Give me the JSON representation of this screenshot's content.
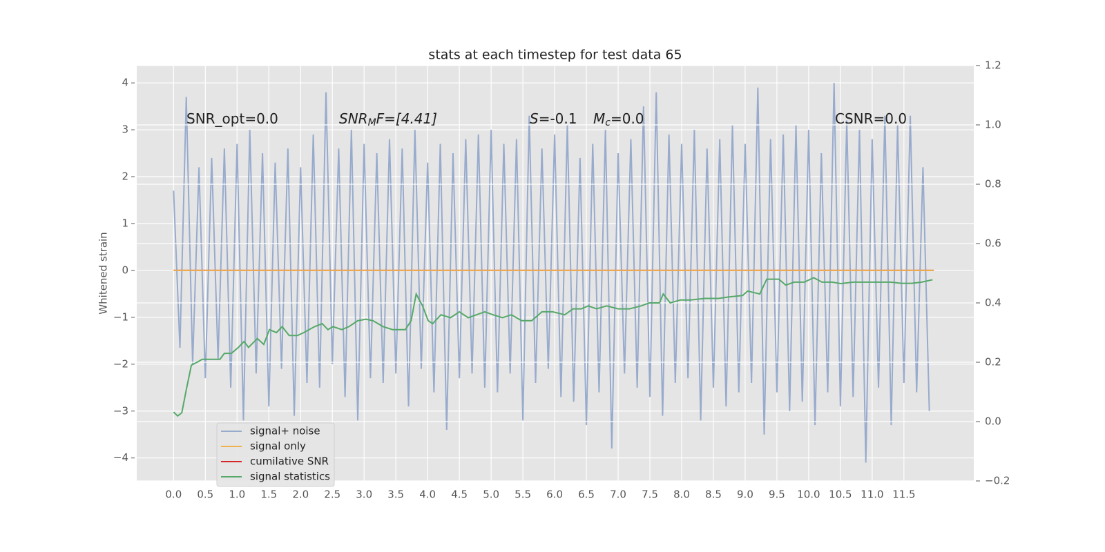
{
  "chart_data": {
    "type": "line",
    "title": "stats at each timestep for test data 65",
    "ylabel": "Whitened strain",
    "xlim": [
      -0.58,
      12.6
    ],
    "ylim": [
      -4.49,
      4.37
    ],
    "y2lim": [
      -0.2,
      1.2
    ],
    "xticks": [
      {
        "value": 0,
        "label": "0.0"
      },
      {
        "value": 0.5,
        "label": "0.5"
      },
      {
        "value": 1,
        "label": "1.0"
      },
      {
        "value": 1.5,
        "label": "1.5"
      },
      {
        "value": 2,
        "label": "2.0"
      },
      {
        "value": 2.5,
        "label": "2.5"
      },
      {
        "value": 3,
        "label": "3.0"
      },
      {
        "value": 3.5,
        "label": "3.5"
      },
      {
        "value": 4,
        "label": "4.0"
      },
      {
        "value": 4.5,
        "label": "4.5"
      },
      {
        "value": 5,
        "label": "5.0"
      },
      {
        "value": 5.5,
        "label": "5.5"
      },
      {
        "value": 6,
        "label": "6.0"
      },
      {
        "value": 6.5,
        "label": "6.5"
      },
      {
        "value": 7,
        "label": "7.0"
      },
      {
        "value": 7.5,
        "label": "7.5"
      },
      {
        "value": 8,
        "label": "8.0"
      },
      {
        "value": 8.5,
        "label": "8.5"
      },
      {
        "value": 9,
        "label": "9.0"
      },
      {
        "value": 9.5,
        "label": "9.5"
      },
      {
        "value": 10,
        "label": "10.0"
      },
      {
        "value": 10.5,
        "label": "10.5"
      },
      {
        "value": 11,
        "label": "11.0"
      },
      {
        "value": 11.5,
        "label": "11.5"
      }
    ],
    "yticks": [
      {
        "value": -4,
        "label": "−4"
      },
      {
        "value": -3,
        "label": "−3"
      },
      {
        "value": -2,
        "label": "−2"
      },
      {
        "value": -1,
        "label": "−1"
      },
      0,
      1,
      2,
      3,
      4
    ],
    "y2ticks": [
      {
        "value": -0.2,
        "label": "−0.2"
      },
      {
        "value": 0,
        "label": "0.0"
      },
      0.2,
      0.4,
      0.6,
      0.8,
      {
        "value": 1,
        "label": "1.0"
      },
      1.2
    ],
    "grid": true,
    "legend": "lower left",
    "annotations": [
      [
        "SNR_opt=0.0"
      ],
      [
        "SNR",
        "M",
        "F=[4.41]"
      ],
      [
        "S",
        "=-0.1"
      ],
      [
        "M",
        "c",
        "=0.0"
      ],
      [
        "CSNR=0.0"
      ]
    ],
    "series": [
      {
        "name": "signal+ noise",
        "color": "#98abcd",
        "x": [
          0,
          0.1,
          0.2,
          0.3,
          0.4,
          0.5,
          0.6,
          0.7,
          0.8,
          0.9,
          1,
          1.1,
          1.2,
          1.3,
          1.4,
          1.5,
          1.6,
          1.7,
          1.8,
          1.9,
          2,
          2.1,
          2.2,
          2.3,
          2.4,
          2.5,
          2.6,
          2.7,
          2.8,
          2.9,
          3,
          3.1,
          3.2,
          3.3,
          3.4,
          3.5,
          3.6,
          3.7,
          3.8,
          3.9,
          4,
          4.1,
          4.2,
          4.3,
          4.4,
          4.5,
          4.6,
          4.7,
          4.8,
          4.9,
          5,
          5.1,
          5.2,
          5.3,
          5.4,
          5.5,
          5.6,
          5.7,
          5.8,
          5.9,
          6,
          6.1,
          6.2,
          6.3,
          6.4,
          6.5,
          6.6,
          6.7,
          6.8,
          6.9,
          7,
          7.1,
          7.2,
          7.3,
          7.4,
          7.5,
          7.6,
          7.7,
          7.8,
          7.9,
          8,
          8.1,
          8.2,
          8.3,
          8.4,
          8.5,
          8.6,
          8.7,
          8.8,
          8.9,
          9,
          9.1,
          9.2,
          9.3,
          9.4,
          9.5,
          9.6,
          9.7,
          9.8,
          9.9,
          10,
          10.1,
          10.2,
          10.3,
          10.4,
          10.5,
          10.6,
          10.7,
          10.8,
          10.9,
          11,
          11.1,
          11.2,
          11.3,
          11.4,
          11.5,
          11.6,
          11.7,
          11.8,
          11.9
        ],
        "values": [
          1.7,
          -1.65,
          3.7,
          -2.0,
          2.2,
          -2.3,
          2.4,
          -1.9,
          2.6,
          -2.5,
          2.7,
          -3.2,
          3.0,
          -2.2,
          2.5,
          -2.9,
          2.3,
          -2.1,
          2.6,
          -3.1,
          2.2,
          -2.4,
          2.9,
          -2.5,
          3.8,
          -2.0,
          2.6,
          -2.7,
          3.0,
          -3.2,
          2.7,
          -2.3,
          2.5,
          -2.4,
          2.8,
          -2.2,
          2.6,
          -2.9,
          3.0,
          -2.1,
          2.3,
          -2.6,
          2.7,
          -3.4,
          2.5,
          -2.3,
          2.8,
          -2.2,
          2.9,
          -2.5,
          3.0,
          -2.6,
          2.7,
          -2.2,
          2.8,
          -3.2,
          3.3,
          -2.4,
          2.6,
          -2.1,
          2.9,
          -2.7,
          3.1,
          -2.8,
          2.4,
          -3.3,
          2.7,
          -2.6,
          3.0,
          -3.8,
          2.5,
          -2.2,
          2.8,
          -2.5,
          3.5,
          -2.7,
          3.8,
          -3.1,
          2.9,
          -2.4,
          2.7,
          -2.3,
          3.0,
          -3.2,
          2.6,
          -2.5,
          2.8,
          -2.9,
          3.1,
          -2.6,
          2.7,
          -2.4,
          3.9,
          -3.5,
          2.8,
          -2.6,
          2.9,
          -3.0,
          3.1,
          -2.8,
          3.0,
          -3.3,
          2.5,
          -2.6,
          4.0,
          -2.9,
          3.2,
          -2.7,
          3.0,
          -4.1,
          2.8,
          -2.5,
          3.3,
          -3.3,
          3.1,
          -2.4,
          3.3,
          -2.6,
          2.2,
          -3.0
        ]
      },
      {
        "name": "signal only",
        "color": "#f0b04f",
        "x": [
          0,
          11.97
        ],
        "values": [
          0,
          0
        ]
      },
      {
        "name": "cumilative SNR",
        "color": "#d62728",
        "x": [
          0,
          11.97
        ],
        "values": [
          0,
          0
        ]
      },
      {
        "name": "signal statistics",
        "color": "#55a868",
        "axis": "y2",
        "x": [
          0,
          0.065,
          0.13,
          0.2,
          0.28,
          0.37,
          0.45,
          0.53,
          0.64,
          0.73,
          0.8,
          0.91,
          1.02,
          1.11,
          1.18,
          1.32,
          1.42,
          1.51,
          1.62,
          1.71,
          1.82,
          1.95,
          2.05,
          2.22,
          2.34,
          2.43,
          2.51,
          2.65,
          2.76,
          2.9,
          3.03,
          3.14,
          3.3,
          3.45,
          3.55,
          3.65,
          3.74,
          3.82,
          3.92,
          4.01,
          4.08,
          4.21,
          4.36,
          4.5,
          4.64,
          4.77,
          4.9,
          5.03,
          5.18,
          5.32,
          5.48,
          5.64,
          5.8,
          5.97,
          6.16,
          6.29,
          6.42,
          6.53,
          6.66,
          6.82,
          7.0,
          7.18,
          7.36,
          7.49,
          7.65,
          7.71,
          7.82,
          7.98,
          8.14,
          8.36,
          8.58,
          8.74,
          8.96,
          9.04,
          9.23,
          9.34,
          9.53,
          9.64,
          9.77,
          9.93,
          10.08,
          10.21,
          10.37,
          10.51,
          10.7,
          10.86,
          11.02,
          11.29,
          11.46,
          11.62,
          11.78,
          11.95
        ],
        "values": [
          0.032,
          0.019,
          0.03,
          0.107,
          0.19,
          0.2,
          0.21,
          0.21,
          0.21,
          0.21,
          0.23,
          0.23,
          0.25,
          0.27,
          0.25,
          0.28,
          0.26,
          0.31,
          0.3,
          0.32,
          0.29,
          0.29,
          0.3,
          0.32,
          0.33,
          0.31,
          0.32,
          0.31,
          0.32,
          0.34,
          0.345,
          0.34,
          0.32,
          0.31,
          0.31,
          0.31,
          0.34,
          0.43,
          0.39,
          0.34,
          0.33,
          0.36,
          0.35,
          0.37,
          0.35,
          0.36,
          0.37,
          0.36,
          0.35,
          0.36,
          0.34,
          0.34,
          0.37,
          0.37,
          0.36,
          0.38,
          0.38,
          0.39,
          0.38,
          0.39,
          0.38,
          0.38,
          0.39,
          0.4,
          0.4,
          0.43,
          0.4,
          0.41,
          0.41,
          0.415,
          0.415,
          0.42,
          0.425,
          0.44,
          0.43,
          0.48,
          0.48,
          0.46,
          0.47,
          0.47,
          0.485,
          0.47,
          0.47,
          0.465,
          0.47,
          0.47,
          0.47,
          0.47,
          0.466,
          0.466,
          0.47,
          0.478
        ]
      }
    ]
  }
}
